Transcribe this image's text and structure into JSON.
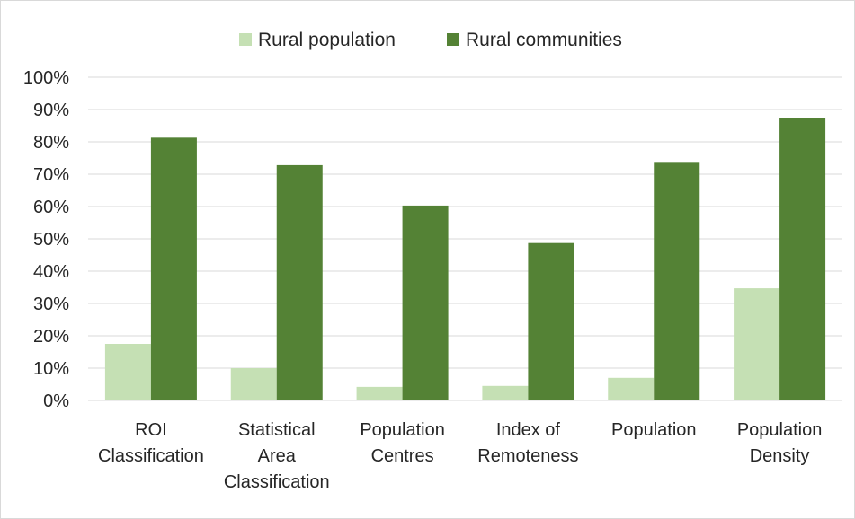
{
  "chart_data": {
    "type": "bar",
    "title": "",
    "xlabel": "",
    "ylabel": "",
    "ylim": [
      0,
      100
    ],
    "y_ticks": [
      "0%",
      "10%",
      "20%",
      "30%",
      "40%",
      "50%",
      "60%",
      "70%",
      "80%",
      "90%",
      "100%"
    ],
    "y_tick_values": [
      0,
      10,
      20,
      30,
      40,
      50,
      60,
      70,
      80,
      90,
      100
    ],
    "grid": true,
    "legend_position": "top-center",
    "categories": [
      [
        "ROI",
        "Classification"
      ],
      [
        "Statistical",
        "Area",
        "Classification"
      ],
      [
        "Population",
        "Centres"
      ],
      [
        "Index of",
        "Remoteness"
      ],
      [
        "Population"
      ],
      [
        "Population",
        "Density"
      ]
    ],
    "series": [
      {
        "name": "Rural population",
        "color": "#c5e0b4",
        "values": [
          17.5,
          10,
          4.2,
          4.5,
          7,
          34.7
        ]
      },
      {
        "name": "Rural communities",
        "color": "#548235",
        "values": [
          81.3,
          72.8,
          60.3,
          48.7,
          73.8,
          87.5
        ]
      }
    ]
  }
}
